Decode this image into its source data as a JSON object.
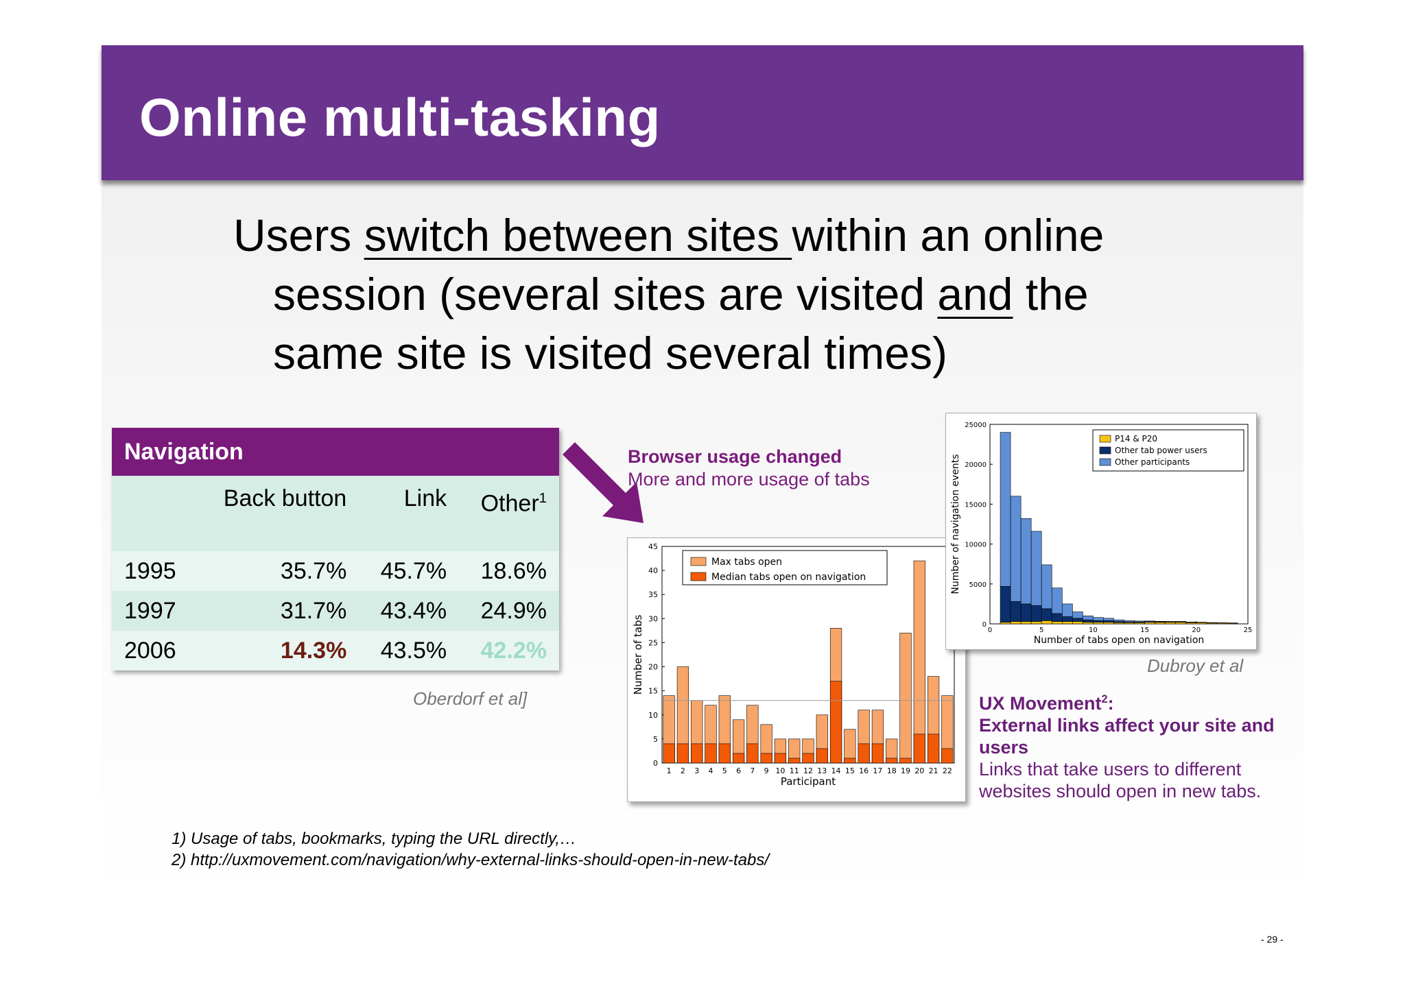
{
  "title": "Online multi-tasking",
  "headline": {
    "part1": "Users ",
    "part2_underlined": "switch between sites ",
    "part3": "within an online",
    "line2_a": "session (several sites are visited ",
    "line2_underlined": "and",
    "line2_b": " the",
    "line3": "same site is visited several times)"
  },
  "nav_table": {
    "header": "Navigation",
    "columns": [
      "",
      "Back button",
      "Link",
      "Other"
    ],
    "other_sup": "1",
    "rows": [
      {
        "year": "1995",
        "back": "35.7%",
        "link": "45.7%",
        "other": "18.6%"
      },
      {
        "year": "1997",
        "back": "31.7%",
        "link": "43.4%",
        "other": "24.9%"
      },
      {
        "year": "2006",
        "back": "14.3%",
        "link": "43.5%",
        "other": "42.2%"
      }
    ],
    "citation": "Oberdorf et al]"
  },
  "note_browser": {
    "bold": "Browser usage changed",
    "text": "More and more usage of tabs"
  },
  "note_ux": {
    "bold1": "UX Movement",
    "sup": "2",
    "colon": ":",
    "bold2": "External links affect your site and users",
    "text": "Links that take users to different websites should open in new tabs."
  },
  "citation_dubroy": "Dubroy et al",
  "footnotes": {
    "f1": "1)  Usage of tabs, bookmarks, typing the URL directly,…",
    "f2": "2)  http://uxmovement.com/navigation/why-external-links-should-open-in-new-tabs/"
  },
  "page_number": "- 29 -",
  "colors": {
    "header": "#6a338d",
    "table_header": "#7a1b7c",
    "max_tabs": "#f8a56a",
    "median_tabs": "#f35a07",
    "p14": "#f5c518",
    "power": "#0b2f6b",
    "other_part": "#5f8fd6"
  },
  "chart_data": [
    {
      "type": "bar",
      "xlabel": "Participant",
      "ylabel": "Number of tabs",
      "ylim": [
        0,
        45
      ],
      "yticks": [
        0,
        5,
        10,
        15,
        20,
        25,
        30,
        35,
        40,
        45
      ],
      "categories": [
        "1",
        "2",
        "3",
        "4",
        "5",
        "6",
        "7",
        "9",
        "10",
        "11",
        "12",
        "13",
        "14",
        "15",
        "16",
        "17",
        "18",
        "19",
        "20",
        "21",
        "22"
      ],
      "legend_position": "top-left",
      "series": [
        {
          "name": "Max tabs open",
          "values": [
            14,
            20,
            13,
            12,
            14,
            9,
            12,
            8,
            5,
            5,
            5,
            10,
            28,
            7,
            11,
            11,
            5,
            27,
            42,
            18,
            14
          ]
        },
        {
          "name": "Median tabs open on navigation",
          "values": [
            4,
            4,
            4,
            4,
            4,
            2,
            4,
            2,
            2,
            1,
            2,
            3,
            17,
            1,
            4,
            4,
            1,
            1,
            6,
            6,
            3
          ]
        }
      ],
      "reference_line": 13
    },
    {
      "type": "bar",
      "xlabel": "Number of tabs open on navigation",
      "ylabel": "Number of navigation events",
      "xlim": [
        0,
        25
      ],
      "ylim": [
        0,
        25000
      ],
      "xticks": [
        0,
        5,
        10,
        15,
        20,
        25
      ],
      "yticks": [
        0,
        5000,
        10000,
        15000,
        20000,
        25000
      ],
      "bin_width": 1,
      "x": [
        1,
        2,
        3,
        4,
        5,
        6,
        7,
        8,
        9,
        10,
        11,
        12,
        13,
        14,
        15,
        16,
        17,
        18,
        19,
        20,
        21,
        22,
        23
      ],
      "legend_position": "top-right",
      "series": [
        {
          "name": "P14 & P20",
          "values": [
            200,
            300,
            300,
            300,
            400,
            300,
            300,
            300,
            200,
            200,
            200,
            150,
            150,
            150,
            200,
            200,
            200,
            200,
            150,
            150,
            100,
            100,
            80
          ]
        },
        {
          "name": "Other tab power users",
          "values": [
            4500,
            2500,
            2200,
            2000,
            1500,
            1000,
            600,
            400,
            300,
            200,
            200,
            150,
            100,
            100,
            80,
            60,
            50,
            50,
            40,
            30,
            30,
            20,
            20
          ]
        },
        {
          "name": "Other participants",
          "values": [
            19300,
            13200,
            10700,
            9300,
            5500,
            3200,
            1600,
            800,
            500,
            400,
            300,
            200,
            150,
            100,
            80,
            60,
            50,
            50,
            40,
            30,
            30,
            20,
            20
          ]
        }
      ]
    }
  ]
}
